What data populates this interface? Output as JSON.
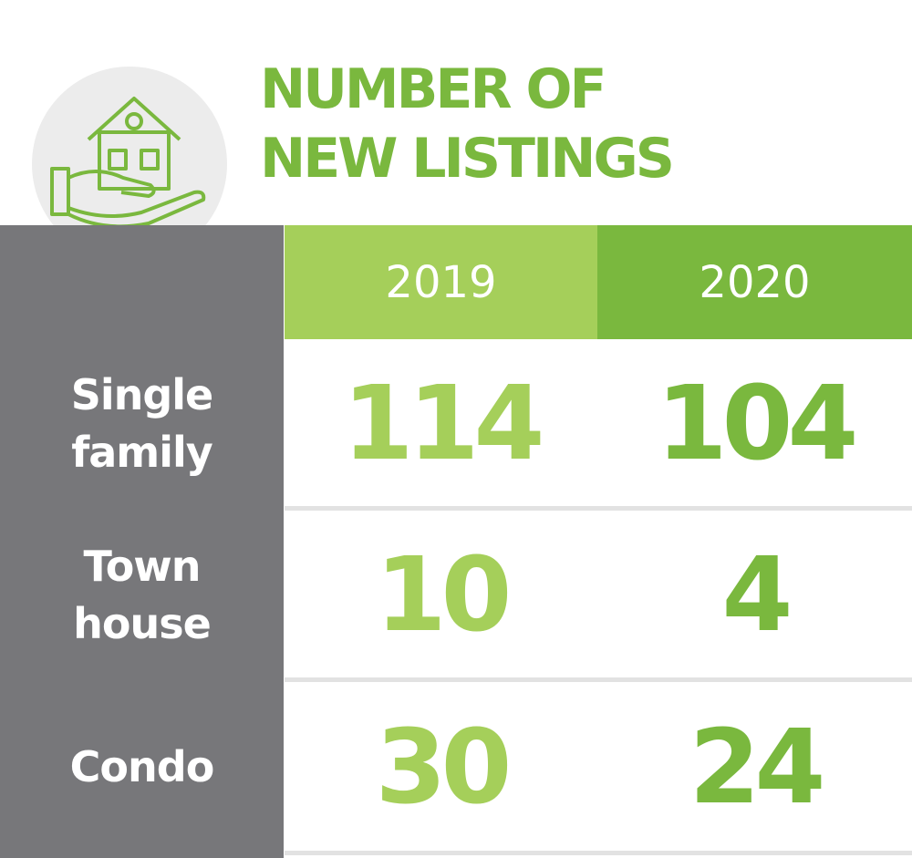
{
  "title": [
    "NUMBER OF",
    "NEW LISTINGS"
  ],
  "table": {
    "columns": [
      "2019",
      "2020"
    ],
    "rows": [
      {
        "label": "Single family",
        "values": [
          114,
          104
        ]
      },
      {
        "label": "Town house",
        "values": [
          10,
          4
        ]
      },
      {
        "label": "Condo",
        "values": [
          30,
          24
        ]
      }
    ]
  }
}
